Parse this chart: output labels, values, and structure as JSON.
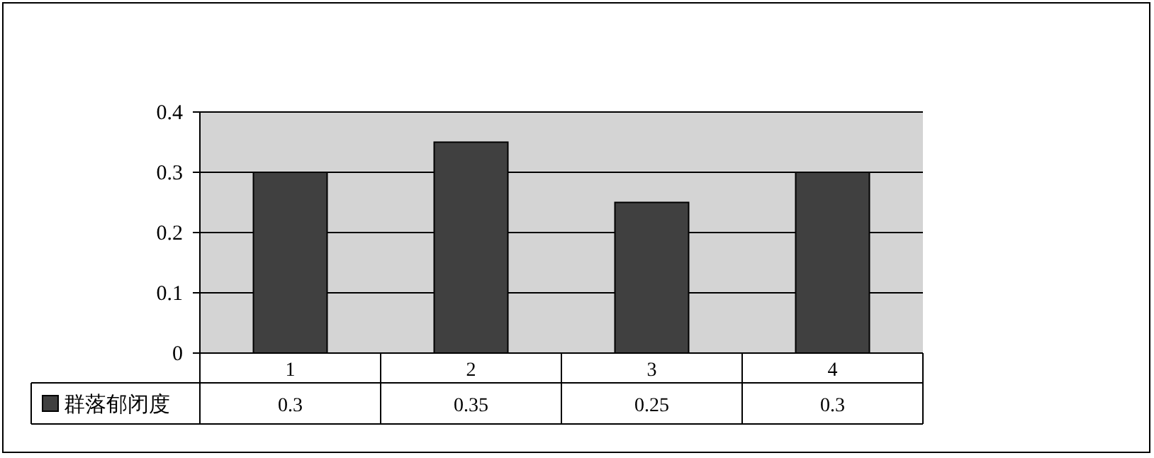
{
  "chart_data": {
    "type": "bar",
    "categories": [
      "1",
      "2",
      "3",
      "4"
    ],
    "series": [
      {
        "name": "群落郁闭度",
        "color": "#404040",
        "values": [
          0.3,
          0.35,
          0.25,
          0.3
        ]
      }
    ],
    "ylim": [
      0,
      0.4
    ],
    "yticks": [
      0,
      0.1,
      0.2,
      0.3,
      0.4
    ],
    "grid": "y",
    "data_labels": true,
    "legend": "bottom"
  }
}
